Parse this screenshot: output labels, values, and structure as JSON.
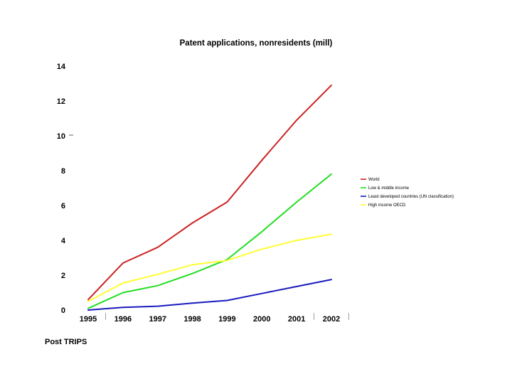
{
  "chart_data": {
    "type": "line",
    "title": "Patent applications, nonresidents  (mill)",
    "xlabel": "",
    "ylabel": "",
    "x": [
      "1995",
      "1996",
      "1997",
      "1998",
      "1999",
      "2000",
      "2001",
      "2002"
    ],
    "ylim": [
      0,
      14
    ],
    "yticks": [
      "0",
      "2",
      "4",
      "6",
      "8",
      "10",
      "12",
      "14"
    ],
    "grid": false,
    "legend_position": "right",
    "series": [
      {
        "name": "World",
        "color": "#cc2222",
        "values": [
          0.6,
          2.7,
          3.6,
          5.0,
          6.2,
          8.6,
          10.9,
          12.9
        ]
      },
      {
        "name": "Low & middle income",
        "color": "#22dd22",
        "values": [
          0.1,
          1.0,
          1.4,
          2.1,
          2.9,
          4.5,
          6.2,
          7.8
        ]
      },
      {
        "name": "Least developed countries (UN classification)",
        "color": "#1a1abf",
        "values": [
          0.0,
          0.15,
          0.22,
          0.4,
          0.55,
          0.95,
          1.35,
          1.75
        ]
      },
      {
        "name": "High income OECD",
        "color": "#ffff33",
        "values": [
          0.5,
          1.55,
          2.05,
          2.6,
          2.85,
          3.5,
          4.0,
          4.35
        ]
      }
    ],
    "annotations": [
      "Post TRIPS"
    ]
  }
}
